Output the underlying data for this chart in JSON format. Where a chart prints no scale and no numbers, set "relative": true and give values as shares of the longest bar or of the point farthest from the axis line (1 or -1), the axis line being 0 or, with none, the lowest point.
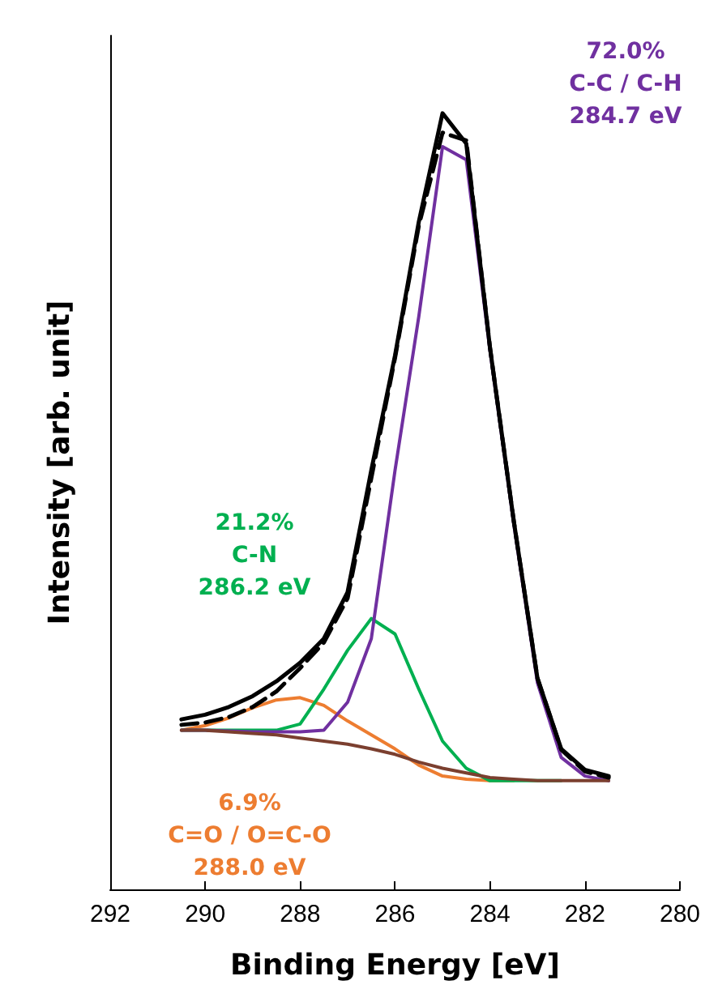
{
  "chart_data": {
    "type": "line",
    "relative": true,
    "xlabel": "Binding Energy [eV]",
    "ylabel": "Intensity [arb. unit]",
    "xlim": [
      292,
      280
    ],
    "xticks": [
      292,
      290,
      288,
      286,
      284,
      282,
      280
    ],
    "tick_labels": "x",
    "grid": false,
    "marker": "none",
    "x": [
      290.5,
      290,
      289.5,
      289,
      288.5,
      288,
      287.5,
      287,
      286.5,
      286,
      285.5,
      285,
      284.5,
      284,
      283.5,
      283,
      282.5,
      282,
      281.5
    ],
    "series": [
      {
        "color": "#000000",
        "line_style": "solid",
        "values": [
          0.219,
          0.225,
          0.235,
          0.249,
          0.268,
          0.292,
          0.323,
          0.383,
          0.54,
          0.688,
          0.86,
          1.0,
          0.961,
          0.698,
          0.475,
          0.272,
          0.181,
          0.154,
          0.146
        ]
      },
      {
        "color": "#000000",
        "line_style": "dashed",
        "values": [
          0.212,
          0.215,
          0.222,
          0.235,
          0.255,
          0.285,
          0.318,
          0.375,
          0.53,
          0.685,
          0.855,
          0.975,
          0.965,
          0.698,
          0.475,
          0.272,
          0.18,
          0.152,
          0.144
        ]
      },
      {
        "color": "#7b3f2f",
        "line_style": "solid",
        "values": [
          0.205,
          0.205,
          0.203,
          0.201,
          0.199,
          0.195,
          0.191,
          0.187,
          0.181,
          0.174,
          0.164,
          0.156,
          0.15,
          0.144,
          0.142,
          0.14,
          0.14,
          0.14,
          0.14
        ]
      },
      {
        "color": "#7030a0",
        "line_style": "solid",
        "values": [
          0.205,
          0.205,
          0.204,
          0.203,
          0.203,
          0.203,
          0.205,
          0.241,
          0.323,
          0.54,
          0.738,
          0.957,
          0.94,
          0.694,
          0.471,
          0.266,
          0.17,
          0.146,
          0.14
        ]
      },
      {
        "color": "#00b050",
        "line_style": "solid",
        "values": [
          0.205,
          0.205,
          0.205,
          0.205,
          0.205,
          0.213,
          0.258,
          0.308,
          0.349,
          0.329,
          0.258,
          0.191,
          0.156,
          0.14,
          0.14,
          0.14,
          0.14,
          null,
          null
        ]
      },
      {
        "color": "#ed7d31",
        "line_style": "solid",
        "values": [
          0.205,
          0.211,
          0.221,
          0.234,
          0.244,
          0.247,
          0.237,
          0.217,
          0.199,
          0.181,
          0.16,
          0.146,
          0.142,
          0.14,
          0.14,
          null,
          null,
          null,
          null
        ]
      }
    ],
    "annotations": [
      "72.0%\nC-C / C-H\n284.7 eV",
      "21.2%\nC-N\n286.2 eV",
      "6.9%\nC=O / O=C-O\n288.0 eV"
    ]
  }
}
